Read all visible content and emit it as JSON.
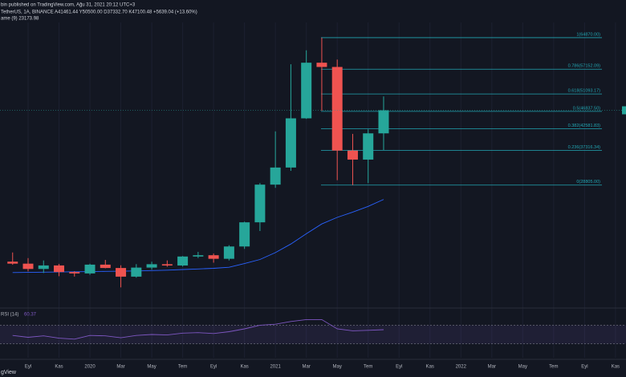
{
  "header": {
    "line1": "bin published on TradingView.com, Ağu 31, 2021 20:12 UTC+3",
    "line2": "TetherUS, 1A, BINANCE  A41461.44 Y50500.00 D37332.70 K47100.48 +5639.04 (+13.60%)",
    "line3": "ame (9)  23173.98"
  },
  "watermark": "gView",
  "chart_data": {
    "type": "candlestick",
    "categories": [
      null,
      "Eyl",
      null,
      "Kas",
      null,
      "2020",
      null,
      "Mar",
      null,
      "May",
      null,
      "Tem",
      null,
      "Eyl",
      null,
      "Kas",
      null,
      "2021",
      null,
      "Mar",
      null,
      "May",
      null,
      "Tem",
      null,
      "Eyl",
      null,
      "Kas",
      null,
      "2022",
      null,
      "Mar",
      null,
      "May",
      null,
      "Tem",
      null,
      "Eyl",
      null,
      "Kas"
    ],
    "open": [
      10080,
      9590,
      8290,
      9150,
      7540,
      7195,
      9350,
      8525,
      6410,
      8625,
      9450,
      9135,
      11335,
      11650,
      10775,
      13790,
      19700,
      28920,
      33100,
      45135,
      58740,
      57700,
      37250,
      35040,
      41460,
      null,
      null,
      null,
      null,
      null,
      null,
      null,
      null,
      null,
      null,
      null,
      null,
      null,
      null,
      null
    ],
    "high": [
      12325,
      10950,
      10370,
      9530,
      7750,
      9575,
      10500,
      9190,
      9470,
      10070,
      10380,
      11450,
      12470,
      12070,
      14100,
      19860,
      29300,
      41950,
      58350,
      61780,
      64850,
      59500,
      41330,
      42450,
      50500,
      null,
      null,
      null,
      null,
      null,
      null,
      null,
      null,
      null,
      null,
      null,
      null,
      null,
      null,
      null
    ],
    "low": [
      9320,
      7710,
      7300,
      6515,
      6430,
      6850,
      8450,
      3780,
      6150,
      8120,
      8830,
      8890,
      10950,
      9825,
      10370,
      13200,
      17570,
      28130,
      32300,
      45000,
      47000,
      30000,
      28800,
      29280,
      37330,
      null,
      null,
      null,
      null,
      null,
      null,
      null,
      null,
      null,
      null,
      null,
      null,
      null,
      null,
      null
    ],
    "close": [
      9590,
      8290,
      9150,
      7540,
      7195,
      9350,
      8525,
      6410,
      8625,
      9450,
      9135,
      11335,
      11650,
      10775,
      13790,
      19700,
      28920,
      33100,
      45135,
      58740,
      57700,
      37250,
      35040,
      41460,
      47100.48,
      null,
      null,
      null,
      null,
      null,
      null,
      null,
      null,
      null,
      null,
      null,
      null,
      null,
      null,
      null
    ],
    "up_color": "#26a69a",
    "down_color": "#ef5350",
    "ylim": [
      -1460,
      74080
    ],
    "grid": true,
    "ma": {
      "color": "#2962ff",
      "values": [
        7400,
        7450,
        7500,
        7550,
        7600,
        7650,
        7700,
        7750,
        7800,
        7900,
        8000,
        8150,
        8300,
        8450,
        8700,
        9600,
        10600,
        12300,
        14400,
        16900,
        19300,
        20900,
        22200,
        23600,
        25300,
        null,
        null,
        null,
        null,
        null,
        null,
        null,
        null,
        null,
        null,
        null,
        null,
        null,
        null,
        null
      ]
    },
    "fib": {
      "color": "#22a6b3",
      "levels": [
        {
          "value": 64870,
          "label": "1(64870.00)"
        },
        {
          "value": 57152.09,
          "label": "0.786(57152.09)"
        },
        {
          "value": 51093.17,
          "label": "0.618(51093.17)"
        },
        {
          "value": 46837.5,
          "label": "0.5(46837.50)"
        },
        {
          "value": 42581.83,
          "label": "0.382(42581.83)"
        },
        {
          "value": 37316.34,
          "label": "0.236(37316.34)"
        },
        {
          "value": 28805,
          "label": "0(28805.00)"
        }
      ]
    },
    "indicator": {
      "title": "RSI (14)",
      "color": "#7e57c2",
      "ylim": [
        0,
        100
      ],
      "levels": [
        70,
        30
      ],
      "values": [
        48,
        44,
        47,
        42,
        40,
        48,
        47,
        43,
        48,
        50,
        49,
        53,
        54,
        52,
        56,
        62,
        70,
        72,
        78,
        82,
        82,
        62,
        58,
        59,
        60.37,
        null,
        null,
        null,
        null,
        null,
        null,
        null,
        null,
        null,
        null,
        null,
        null,
        null,
        null,
        null
      ]
    }
  }
}
